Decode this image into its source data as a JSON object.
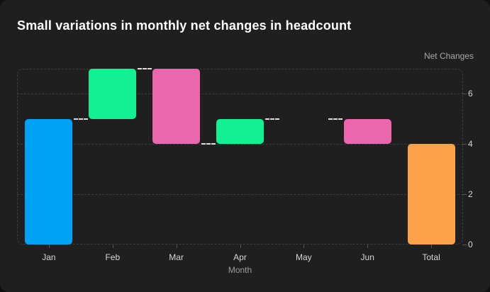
{
  "chart_data": {
    "type": "bar",
    "subtype": "waterfall",
    "title": "Small variations in monthly net changes in headcount",
    "xlabel": "Month",
    "ylabel": "Net Changes",
    "categories": [
      "Jan",
      "Feb",
      "Mar",
      "Apr",
      "May",
      "Jun",
      "Total"
    ],
    "changes": [
      5,
      2,
      -3,
      1,
      0,
      -1,
      4
    ],
    "bars": [
      {
        "category": "Jan",
        "start": 0,
        "end": 5,
        "role": "initial",
        "color": "#00A2F8"
      },
      {
        "category": "Feb",
        "start": 5,
        "end": 7,
        "role": "increase",
        "color": "#12F094"
      },
      {
        "category": "Mar",
        "start": 7,
        "end": 4,
        "role": "decrease",
        "color": "#EA67AE"
      },
      {
        "category": "Apr",
        "start": 4,
        "end": 5,
        "role": "increase",
        "color": "#12F094"
      },
      {
        "category": "May",
        "start": 5,
        "end": 5,
        "role": "none",
        "color": null
      },
      {
        "category": "Jun",
        "start": 5,
        "end": 4,
        "role": "decrease",
        "color": "#EA67AE"
      },
      {
        "category": "Total",
        "start": 0,
        "end": 4,
        "role": "total",
        "color": "#FCA349"
      }
    ],
    "y_axis": {
      "side": "right",
      "min": 0,
      "max": 7,
      "ticks": [
        0,
        2,
        4,
        6
      ]
    },
    "grid": "dashed-horizontal",
    "legend": null,
    "colors": {
      "background": "#1F1F20",
      "gridline": "#3D3D3F",
      "connector": "#DEDEDE",
      "title": "#FFFFFF",
      "tick_label": "#D6D6D6",
      "axis_title": "#9C9C9C",
      "y_axis_title": "#A8A8A8"
    }
  }
}
